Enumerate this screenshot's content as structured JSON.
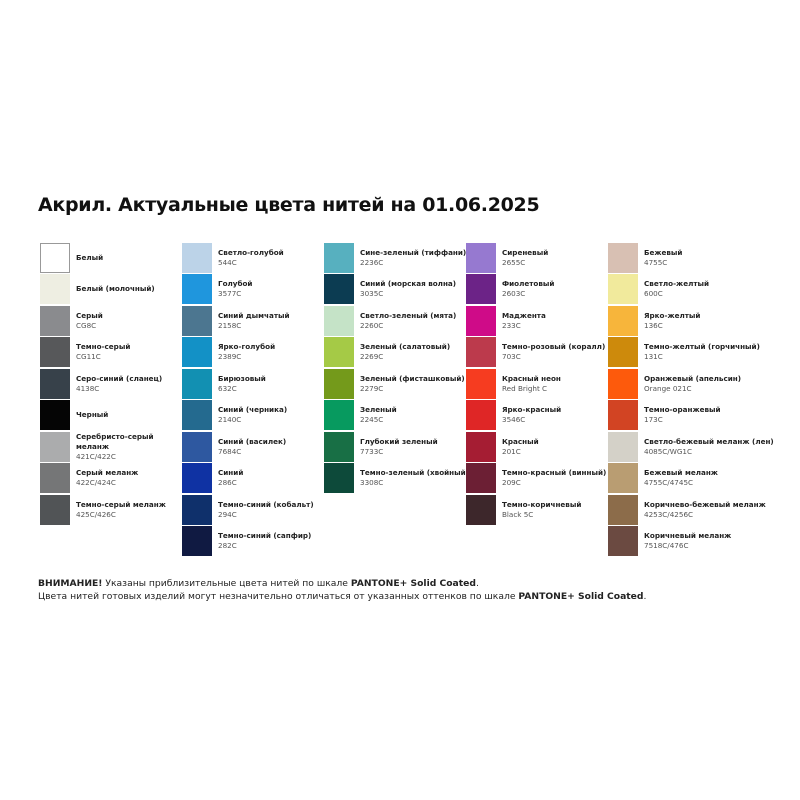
{
  "title": "Акрил. Актуальные цвета нитей на 01.06.2025",
  "columns": [
    [
      {
        "name": "Белый",
        "code": "",
        "color": "#ffffff"
      },
      {
        "name": "Белый (молочный)",
        "code": "",
        "color": "#eeeee2"
      },
      {
        "name": "Серый",
        "code": "CG8C",
        "color": "#8a8b8e"
      },
      {
        "name": "Темно-серый",
        "code": "CG11C",
        "color": "#57585a"
      },
      {
        "name": "Серо-синий (сланец)",
        "code": "4138C",
        "color": "#37414a"
      },
      {
        "name": "Черный",
        "code": "",
        "color": "#050505"
      },
      {
        "name": "Серебристо-серый меланж",
        "code": "421C/422C",
        "color": "#abacad"
      },
      {
        "name": "Серый меланж",
        "code": "422C/424C",
        "color": "#757677"
      },
      {
        "name": "Темно-серый меланж",
        "code": "425C/426C",
        "color": "#515456"
      }
    ],
    [
      {
        "name": "Светло-голубой",
        "code": "544C",
        "color": "#bcd3e8"
      },
      {
        "name": "Голубой",
        "code": "3577C",
        "color": "#1f96dd"
      },
      {
        "name": "Синий дымчатый",
        "code": "2158C",
        "color": "#4c7690"
      },
      {
        "name": "Ярко-голубой",
        "code": "2389C",
        "color": "#1391c6"
      },
      {
        "name": "Бирюзовый",
        "code": "632C",
        "color": "#1290b2"
      },
      {
        "name": "Синий (черника)",
        "code": "2140C",
        "color": "#246a8f"
      },
      {
        "name": "Синий (василек)",
        "code": "7684C",
        "color": "#2e58a0"
      },
      {
        "name": "Синий",
        "code": "286C",
        "color": "#0f32a3"
      },
      {
        "name": "Темно-синий (кобальт)",
        "code": "294C",
        "color": "#0f306b"
      },
      {
        "name": "Темно-синий (сапфир)",
        "code": "282C",
        "color": "#101a42"
      }
    ],
    [
      {
        "name": "Сине-зеленый (тиффани)",
        "code": "2236C",
        "color": "#57b0bf"
      },
      {
        "name": "Синий (морская волна)",
        "code": "3035C",
        "color": "#0c3c52"
      },
      {
        "name": "Светло-зеленый (мята)",
        "code": "2260C",
        "color": "#c5e3c7"
      },
      {
        "name": "Зеленый (салатовый)",
        "code": "2269C",
        "color": "#a5ca46"
      },
      {
        "name": "Зеленый (фисташковый)",
        "code": "2279C",
        "color": "#749a1b"
      },
      {
        "name": "Зеленый",
        "code": "2245C",
        "color": "#079a5f"
      },
      {
        "name": "Глубокий зеленый",
        "code": "7733C",
        "color": "#186f45"
      },
      {
        "name": "Темно-зеленый (хвойный)",
        "code": "3308C",
        "color": "#0d4a3a"
      }
    ],
    [
      {
        "name": "Сиреневый",
        "code": "2655C",
        "color": "#9679d0"
      },
      {
        "name": "Фиолетовый",
        "code": "2603C",
        "color": "#6c2387"
      },
      {
        "name": "Маджента",
        "code": "233C",
        "color": "#cf0b88"
      },
      {
        "name": "Темно-розовый (коралл)",
        "code": "703C",
        "color": "#bc3a4c"
      },
      {
        "name": "Красный неон",
        "code": "Red Bright C",
        "color": "#f63c20"
      },
      {
        "name": "Ярко-красный",
        "code": "3546C",
        "color": "#df2626"
      },
      {
        "name": "Красный",
        "code": "201C",
        "color": "#a51d33"
      },
      {
        "name": "Темно-красный (винный)",
        "code": "209C",
        "color": "#6c1f34"
      },
      {
        "name": "Темно-коричневый",
        "code": "Black 5C",
        "color": "#3d272b"
      }
    ],
    [
      {
        "name": "Бежевый",
        "code": "4755C",
        "color": "#d8c0b3"
      },
      {
        "name": "Светло-желтый",
        "code": "600C",
        "color": "#f1ea9c"
      },
      {
        "name": "Ярко-желтый",
        "code": "136C",
        "color": "#f7b53b"
      },
      {
        "name": "Темно-желтый (горчичный)",
        "code": "131C",
        "color": "#cd8a0c"
      },
      {
        "name": "Оранжевый (апельсин)",
        "code": "Orange 021C",
        "color": "#fd5a0c"
      },
      {
        "name": "Темно-оранжевый",
        "code": "173C",
        "color": "#d24423"
      },
      {
        "name": "Светло-бежевый меланж (лен)",
        "code": "4085C/WG1C",
        "color": "#d4d1c8"
      },
      {
        "name": "Бежевый меланж",
        "code": "4755C/4745C",
        "color": "#b99d72"
      },
      {
        "name": "Коричнево-бежевый меланж",
        "code": "4253C/4256C",
        "color": "#8c6c4a"
      },
      {
        "name": "Коричневый меланж",
        "code": "7518C/476C",
        "color": "#6b4a41"
      }
    ]
  ],
  "footer": {
    "line1_bold": "ВНИМАНИЕ!",
    "line1_text": " Указаны приблизительные цвета нитей по шкале ",
    "line1_brand": "PANTONE+ Solid Coated",
    "line1_end": ".",
    "line2_text": "Цвета нитей готовых изделий могут незначительно отличаться от указанных оттенков по шкале ",
    "line2_brand": "PANTONE+ Solid Coated",
    "line2_end": "."
  }
}
